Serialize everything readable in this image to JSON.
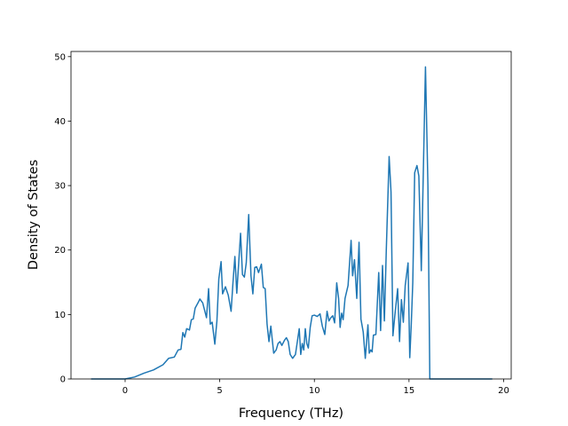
{
  "chart_data": {
    "type": "line",
    "xlabel": "Frequency (THz)",
    "ylabel": "Density of States",
    "xlim": [
      -2.86,
      20.4
    ],
    "ylim": [
      0,
      50.8
    ],
    "xticks": [
      0,
      5,
      10,
      15,
      20
    ],
    "yticks": [
      0,
      10,
      20,
      30,
      40,
      50
    ],
    "x": [
      -1.8,
      0,
      0.5,
      1,
      1.5,
      2,
      2.3,
      2.6,
      2.8,
      2.95,
      3.05,
      3.15,
      3.25,
      3.4,
      3.5,
      3.6,
      3.7,
      3.85,
      3.95,
      4.1,
      4.3,
      4.41,
      4.5,
      4.6,
      4.74,
      4.85,
      4.95,
      5.07,
      5.15,
      5.3,
      5.45,
      5.6,
      5.7,
      5.8,
      5.9,
      6.1,
      6.2,
      6.3,
      6.4,
      6.53,
      6.65,
      6.75,
      6.85,
      6.95,
      7.05,
      7.2,
      7.3,
      7.4,
      7.5,
      7.6,
      7.7,
      7.85,
      7.98,
      8.08,
      8.18,
      8.28,
      8.42,
      8.52,
      8.62,
      8.72,
      8.85,
      9.0,
      9.2,
      9.28,
      9.36,
      9.44,
      9.52,
      9.6,
      9.68,
      9.78,
      9.88,
      10.0,
      10.15,
      10.3,
      10.42,
      10.55,
      10.67,
      10.77,
      10.87,
      10.97,
      11.07,
      11.18,
      11.28,
      11.36,
      11.44,
      11.52,
      11.62,
      11.78,
      11.94,
      12.02,
      12.12,
      12.24,
      12.36,
      12.46,
      12.58,
      12.69,
      12.83,
      12.9,
      12.98,
      13.05,
      13.12,
      13.25,
      13.4,
      13.5,
      13.6,
      13.7,
      13.8,
      13.95,
      14.05,
      14.15,
      14.25,
      14.4,
      14.5,
      14.6,
      14.7,
      14.8,
      14.95,
      15.04,
      15.12,
      15.2,
      15.3,
      15.42,
      15.52,
      15.65,
      15.87,
      16.0,
      16.1,
      19.4
    ],
    "series": [
      {
        "color": "#1f77b4",
        "values": [
          0,
          0,
          0.3,
          0.9,
          1.4,
          2.2,
          3.2,
          3.4,
          4.5,
          4.6,
          7.2,
          6.5,
          7.8,
          7.6,
          9.2,
          9.3,
          11,
          11.8,
          12.4,
          11.8,
          9.5,
          14,
          8.5,
          8.8,
          5.4,
          9,
          15.5,
          18.2,
          13.2,
          14.3,
          13,
          10.5,
          15,
          19,
          13.3,
          22.6,
          16.2,
          15.8,
          18,
          25.5,
          16,
          13.2,
          17.3,
          17.4,
          16.5,
          17.8,
          14.2,
          14,
          8.5,
          5.8,
          8.2,
          4,
          4.5,
          5.5,
          5.8,
          5.2,
          6.0,
          6.4,
          5.8,
          3.8,
          3.2,
          3.8,
          7.8,
          3.8,
          5.5,
          4.5,
          7.8,
          5.5,
          4.8,
          8,
          9.8,
          9.9,
          9.7,
          10.1,
          8.2,
          6.9,
          10.5,
          9,
          9.5,
          9.8,
          8.7,
          14.9,
          12.5,
          8,
          10.2,
          9.2,
          12.5,
          14.5,
          21.5,
          16,
          18.5,
          12.5,
          21.2,
          9.3,
          7.3,
          3.2,
          8.4,
          4,
          4.5,
          4.2,
          6.8,
          6.9,
          16.5,
          7.5,
          17.6,
          9,
          20,
          34.5,
          29,
          6.7,
          9.8,
          14,
          5.8,
          12.3,
          8.8,
          14.5,
          18,
          3.3,
          8.5,
          15,
          32,
          33.1,
          31.5,
          16.8,
          48.4,
          30,
          0,
          0
        ]
      }
    ]
  }
}
